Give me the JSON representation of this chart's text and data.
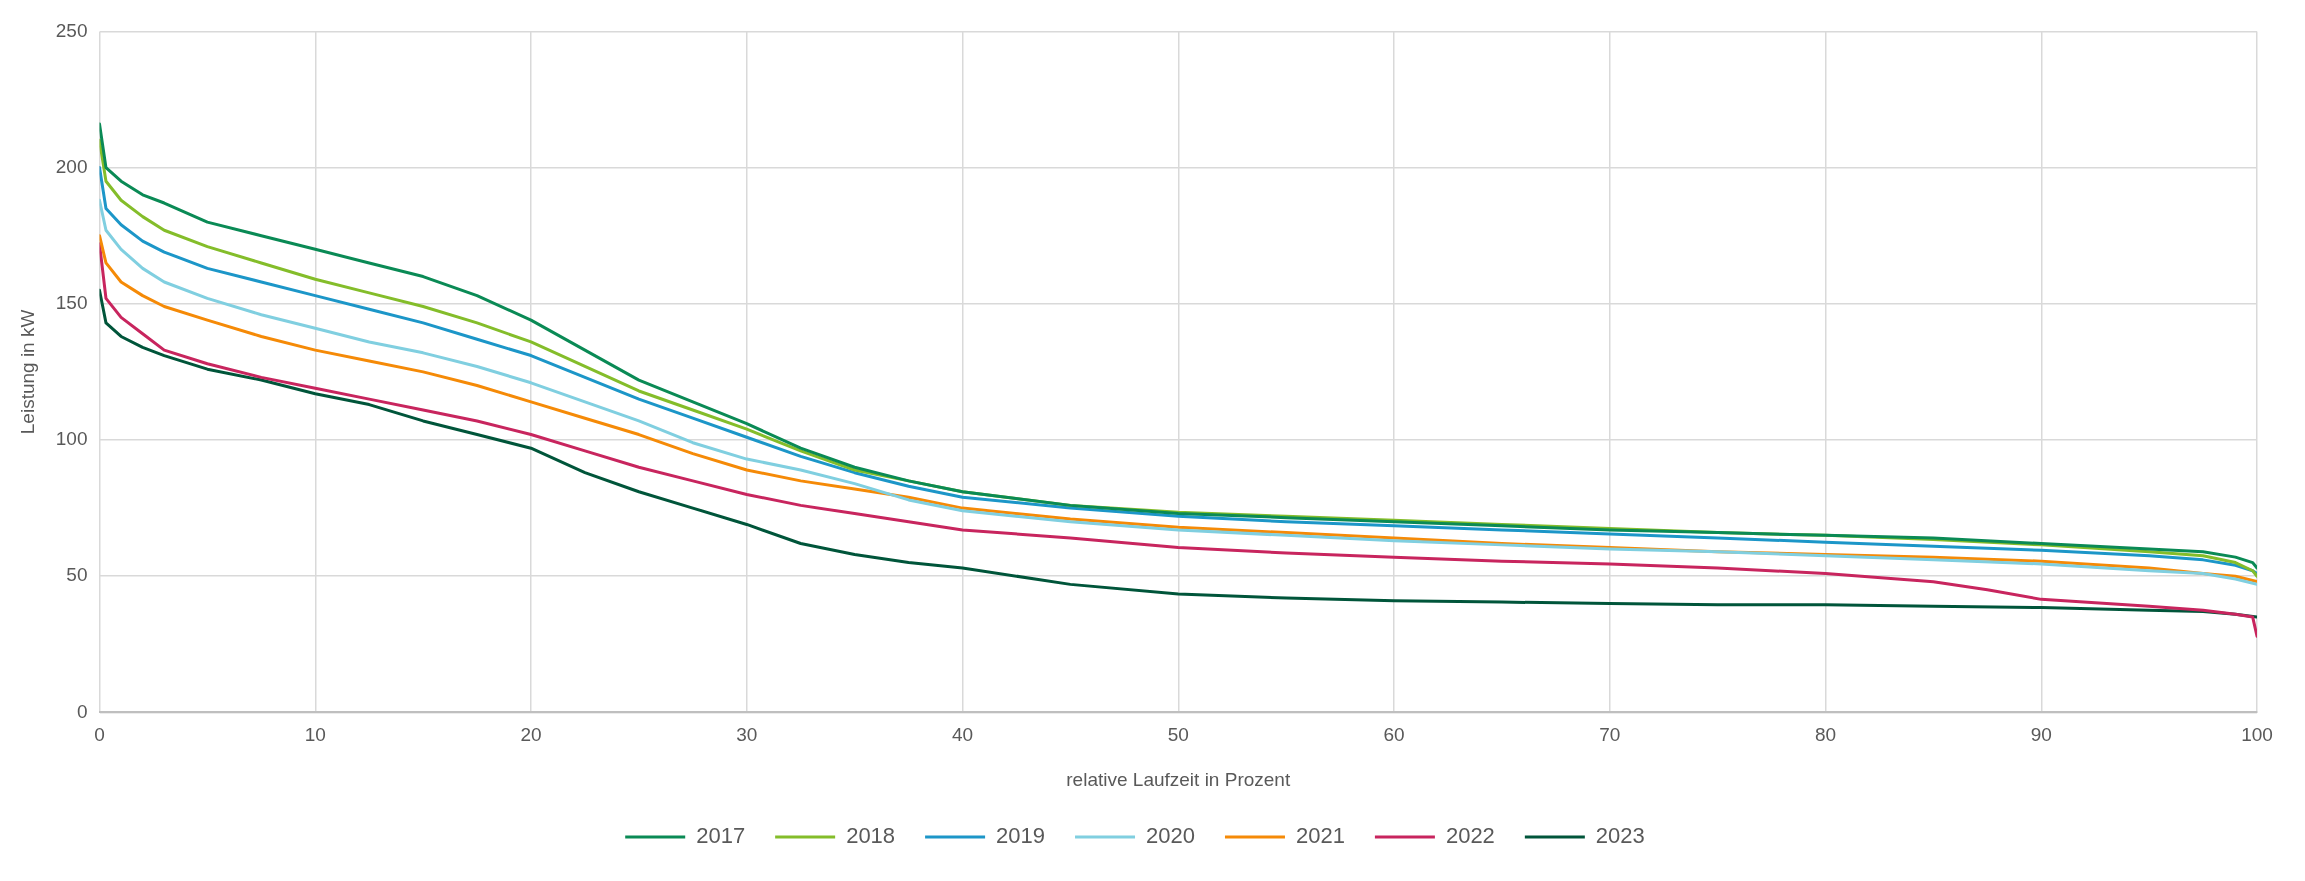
{
  "chart_data": {
    "type": "line",
    "xlabel": "relative Laufzeit in Prozent",
    "ylabel": "Leistung in kW",
    "xlim": [
      0,
      100
    ],
    "xticks": [
      0,
      10,
      20,
      30,
      40,
      50,
      60,
      70,
      80,
      90,
      100
    ],
    "ylim": [
      0,
      250
    ],
    "yticks": [
      0,
      50,
      100,
      150,
      200,
      250
    ],
    "grid": true,
    "legend": "bottom",
    "marker": "none",
    "line_style": "solid",
    "series": [
      {
        "name": "2017",
        "color": "#0a8a55",
        "x": [
          0,
          0.3,
          1,
          2,
          3,
          5,
          7.5,
          10,
          12.5,
          15,
          17.5,
          20,
          22.5,
          25,
          27.5,
          30,
          32.5,
          35,
          37.5,
          40,
          45,
          50,
          55,
          60,
          65,
          70,
          75,
          80,
          85,
          90,
          95,
          97.5,
          99,
          99.8,
          100
        ],
        "values": [
          216,
          200,
          195,
          190,
          187,
          180,
          175,
          170,
          165,
          160,
          153,
          144,
          133,
          122,
          114,
          106,
          97,
          90,
          85,
          81,
          76,
          73,
          71.5,
          70,
          68.5,
          67,
          66,
          65,
          64,
          62,
          60,
          59,
          57,
          55,
          53
        ]
      },
      {
        "name": "2018",
        "color": "#84bd2a",
        "x": [
          0,
          0.3,
          1,
          2,
          3,
          5,
          7.5,
          10,
          12.5,
          15,
          17.5,
          20,
          22.5,
          25,
          27.5,
          30,
          32.5,
          35,
          37.5,
          40,
          45,
          50,
          55,
          60,
          65,
          70,
          75,
          80,
          85,
          90,
          95,
          97.5,
          99,
          99.8,
          100
        ],
        "values": [
          210,
          195,
          188,
          182,
          177,
          171,
          165,
          159,
          154,
          149,
          143,
          136,
          127,
          118,
          111,
          104,
          96,
          89,
          85,
          81,
          76,
          73.5,
          72,
          70.5,
          69,
          67.5,
          66,
          65,
          63.5,
          61.5,
          59,
          57.5,
          55,
          52,
          50
        ]
      },
      {
        "name": "2019",
        "color": "#1c96c8",
        "x": [
          0,
          0.3,
          1,
          2,
          3,
          5,
          7.5,
          10,
          12.5,
          15,
          17.5,
          20,
          22.5,
          25,
          27.5,
          30,
          32.5,
          35,
          37.5,
          40,
          45,
          50,
          55,
          60,
          65,
          70,
          75,
          80,
          85,
          90,
          95,
          97.5,
          99,
          99.8,
          100
        ],
        "values": [
          200,
          185,
          179,
          173,
          169,
          163,
          158,
          153,
          148,
          143,
          137,
          131,
          123,
          115,
          108,
          101,
          94,
          88,
          83,
          79,
          75,
          72,
          70,
          68.5,
          67,
          65.5,
          64,
          62.5,
          61,
          59.5,
          57.5,
          56,
          54,
          52,
          51
        ]
      },
      {
        "name": "2020",
        "color": "#80cfe0",
        "x": [
          0,
          0.3,
          1,
          2,
          3,
          5,
          7.5,
          10,
          12.5,
          15,
          17.5,
          20,
          22.5,
          25,
          27.5,
          30,
          32.5,
          35,
          37.5,
          40,
          45,
          50,
          55,
          60,
          65,
          70,
          75,
          80,
          85,
          90,
          95,
          97.5,
          99,
          100
        ],
        "values": [
          188,
          177,
          170,
          163,
          158,
          152,
          146,
          141,
          136,
          132,
          127,
          121,
          114,
          107,
          99,
          93,
          89,
          84,
          78,
          74,
          70,
          67,
          65,
          63,
          61.5,
          60,
          59,
          57.5,
          56,
          54.5,
          52,
          51,
          49,
          47
        ]
      },
      {
        "name": "2021",
        "color": "#f58a07",
        "x": [
          0,
          0.3,
          1,
          2,
          3,
          5,
          7.5,
          10,
          12.5,
          15,
          17.5,
          20,
          22.5,
          25,
          27.5,
          30,
          32.5,
          35,
          37.5,
          40,
          45,
          50,
          55,
          60,
          65,
          70,
          75,
          80,
          85,
          90,
          95,
          97.5,
          99,
          100
        ],
        "values": [
          175,
          165,
          158,
          153,
          149,
          144,
          138,
          133,
          129,
          125,
          120,
          114,
          108,
          102,
          95,
          89,
          85,
          82,
          79,
          75,
          71,
          68,
          66,
          64,
          62,
          60.5,
          59,
          58,
          57,
          55.5,
          53,
          51,
          50,
          48
        ]
      },
      {
        "name": "2022",
        "color": "#c8255e",
        "x": [
          0,
          0.3,
          1,
          2,
          3,
          5,
          7.5,
          10,
          12.5,
          15,
          17.5,
          20,
          22.5,
          25,
          27.5,
          30,
          32.5,
          35,
          37.5,
          40,
          45,
          50,
          55,
          60,
          65,
          70,
          75,
          80,
          85,
          87.5,
          90,
          95,
          97.5,
          99,
          99.8,
          100
        ],
        "values": [
          172,
          152,
          145,
          139,
          133,
          128,
          123,
          119,
          115,
          111,
          107,
          102,
          96,
          90,
          85,
          80,
          76,
          73,
          70,
          67,
          64,
          60.5,
          58.5,
          57,
          55.5,
          54.5,
          53,
          51,
          48,
          45,
          41.5,
          39,
          37.5,
          36,
          35,
          28
        ]
      },
      {
        "name": "2023",
        "color": "#00553a",
        "x": [
          0,
          0.3,
          1,
          2,
          3,
          5,
          7.5,
          10,
          12.5,
          15,
          17.5,
          20,
          22.5,
          25,
          27.5,
          30,
          32.5,
          35,
          37.5,
          40,
          45,
          50,
          55,
          60,
          65,
          70,
          75,
          80,
          85,
          90,
          95,
          97.5,
          99,
          100
        ],
        "values": [
          155,
          143,
          138,
          134,
          131,
          126,
          122,
          117,
          113,
          107,
          102,
          97,
          88,
          81,
          75,
          69,
          62,
          58,
          55,
          53,
          47,
          43.5,
          42,
          41,
          40.5,
          40,
          39.5,
          39.5,
          39,
          38.5,
          37.5,
          37,
          36,
          35
        ]
      }
    ]
  }
}
